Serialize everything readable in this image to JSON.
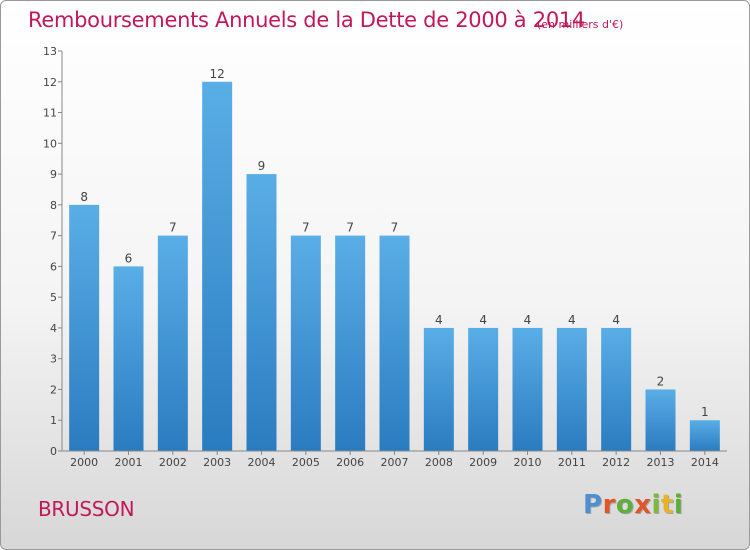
{
  "header": {
    "title": "Remboursements Annuels de la Dette de 2000 à 2014",
    "unit": "(en milliers d'€)"
  },
  "footer": {
    "commune": "BRUSSON",
    "logo": "Proxiti"
  },
  "colors": {
    "title": "#c2185b",
    "bar_top": "#5aaee6",
    "bar_bottom": "#2a7cc0",
    "logo_letters": [
      "#4f8fd0",
      "#e0562a",
      "#5fae3c",
      "#e0562a",
      "#7cb83c",
      "#e8b32c",
      "#5fae3c"
    ]
  },
  "chart_data": {
    "type": "bar",
    "title": "Remboursements Annuels de la Dette de 2000 à 2014",
    "categories": [
      "2000",
      "2001",
      "2002",
      "2003",
      "2004",
      "2005",
      "2006",
      "2007",
      "2008",
      "2009",
      "2010",
      "2011",
      "2012",
      "2013",
      "2014"
    ],
    "values": [
      8,
      6,
      7,
      12,
      9,
      7,
      7,
      7,
      4,
      4,
      4,
      4,
      4,
      2,
      1
    ],
    "ylim": [
      0,
      13
    ],
    "yticks": [
      0,
      1,
      2,
      3,
      4,
      5,
      6,
      7,
      8,
      9,
      10,
      11,
      12,
      13
    ],
    "grid": false,
    "data_labels": true
  }
}
